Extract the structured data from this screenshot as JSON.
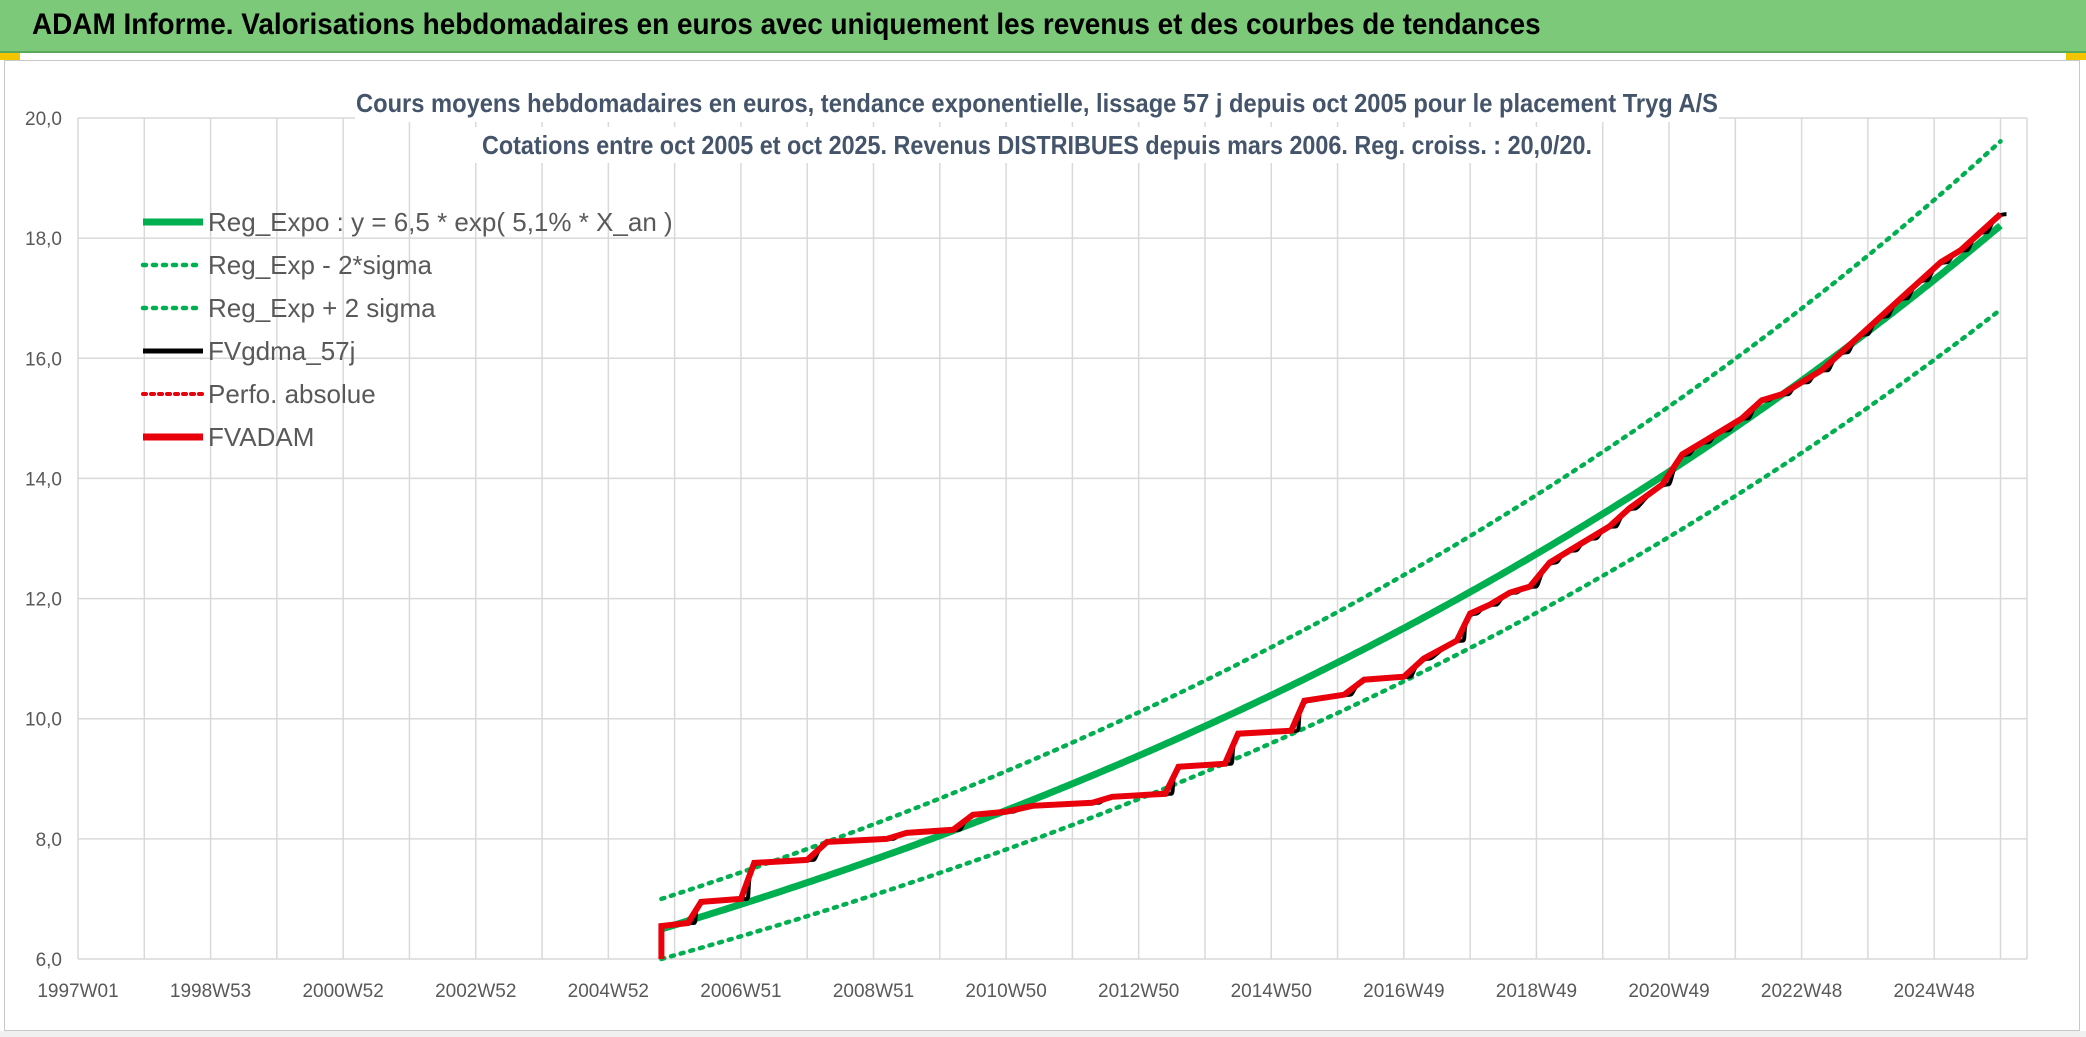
{
  "banner": {
    "title": "ADAM Informe. Valorisations hebdomadaires en euros avec uniquement les revenus et des courbes de tendances"
  },
  "colors": {
    "banner_bg": "#7dc97a",
    "trend": "#00b050",
    "black": "#000000",
    "red": "#e8000b",
    "grid": "#d9d9d9"
  },
  "chart_data": {
    "type": "line",
    "title_line1": "Cours moyens hebdomadaires en euros, tendance exponentielle, lissage 57 j depuis oct 2005 pour le placement Tryg A/S",
    "title_line2": "Cotations entre oct 2005 et oct 2025. Revenus DISTRIBUES depuis mars 2006. Reg. croiss. : 20,0/20.",
    "xlabel": "",
    "ylabel": "",
    "ylim": [
      6.0,
      20.0
    ],
    "y_ticks": [
      "6,0",
      "8,0",
      "10,0",
      "12,0",
      "14,0",
      "16,0",
      "18,0",
      "20,0"
    ],
    "x_range_years": [
      1997.0,
      2026.4
    ],
    "x_ticks": [
      {
        "label": "1997W01",
        "year": 1997.0
      },
      {
        "label": "1998W53",
        "year": 1999.0
      },
      {
        "label": "2000W52",
        "year": 2001.0
      },
      {
        "label": "2002W52",
        "year": 2003.0
      },
      {
        "label": "2004W52",
        "year": 2005.0
      },
      {
        "label": "2006W51",
        "year": 2007.0
      },
      {
        "label": "2008W51",
        "year": 2009.0
      },
      {
        "label": "2010W50",
        "year": 2011.0
      },
      {
        "label": "2012W50",
        "year": 2013.0
      },
      {
        "label": "2014W50",
        "year": 2015.0
      },
      {
        "label": "2016W49",
        "year": 2017.0
      },
      {
        "label": "2018W49",
        "year": 2019.0
      },
      {
        "label": "2020W49",
        "year": 2021.0
      },
      {
        "label": "2022W48",
        "year": 2023.0
      },
      {
        "label": "2024W48",
        "year": 2025.0
      }
    ],
    "legend_placement": "top-left",
    "grid": true,
    "regression": {
      "a": 6.5,
      "rate": 0.051,
      "start_year": 2005.8,
      "end_year": 2026.0
    },
    "series": [
      {
        "name": "Reg_Expo : y = 6,5 * exp( 5,1% *  X_an )",
        "style": "solid-thick",
        "color": "#00b050",
        "x": [
          2005.8,
          2010.8,
          2015.8,
          2020.8,
          2026.0
        ],
        "y": [
          6.5,
          8.4,
          10.8,
          13.9,
          18.1
        ]
      },
      {
        "name": "Reg_Exp - 2*sigma",
        "style": "dotted",
        "color": "#00b050",
        "x": [
          2005.8,
          2010.8,
          2015.8,
          2020.8,
          2026.0
        ],
        "y": [
          6.0,
          7.8,
          10.1,
          13.1,
          16.8
        ]
      },
      {
        "name": "Reg_Exp + 2 sigma",
        "style": "dotted",
        "color": "#00b050",
        "x": [
          2005.8,
          2010.8,
          2015.8,
          2020.8,
          2026.0
        ],
        "y": [
          7.0,
          9.0,
          11.6,
          14.9,
          19.4
        ]
      },
      {
        "name": "FVgdma_57j",
        "style": "solid",
        "color": "#000000"
      },
      {
        "name": "Perfo. absolue",
        "style": "dotted",
        "color": "#e8000b"
      },
      {
        "name": "FVADAM",
        "style": "solid-thick",
        "color": "#e8000b",
        "x": [
          2005.8,
          2005.8,
          2006.2,
          2006.4,
          2007.0,
          2007.2,
          2008.0,
          2008.3,
          2009.2,
          2009.5,
          2010.2,
          2010.5,
          2011.0,
          2011.4,
          2012.3,
          2012.6,
          2013.4,
          2013.6,
          2014.3,
          2014.5,
          2015.3,
          2015.5,
          2016.1,
          2016.4,
          2017.0,
          2017.3,
          2017.8,
          2018.0,
          2018.3,
          2018.6,
          2018.9,
          2019.2,
          2019.5,
          2019.8,
          2020.1,
          2020.4,
          2020.9,
          2021.2,
          2021.5,
          2021.8,
          2022.1,
          2022.4,
          2022.7,
          2023.0,
          2023.3,
          2023.6,
          2023.9,
          2024.2,
          2024.5,
          2024.8,
          2025.1,
          2025.4,
          2025.7,
          2026.0
        ],
        "y": [
          6.0,
          6.55,
          6.6,
          6.95,
          7.0,
          7.6,
          7.65,
          7.95,
          8.0,
          8.1,
          8.15,
          8.4,
          8.45,
          8.55,
          8.6,
          8.7,
          8.75,
          9.2,
          9.25,
          9.75,
          9.8,
          10.3,
          10.4,
          10.65,
          10.7,
          11.0,
          11.3,
          11.75,
          11.9,
          12.1,
          12.2,
          12.6,
          12.8,
          13.0,
          13.2,
          13.5,
          13.9,
          14.4,
          14.6,
          14.8,
          15.0,
          15.3,
          15.4,
          15.6,
          15.8,
          16.1,
          16.4,
          16.7,
          17.0,
          17.3,
          17.6,
          17.8,
          18.1,
          18.4
        ]
      }
    ]
  }
}
